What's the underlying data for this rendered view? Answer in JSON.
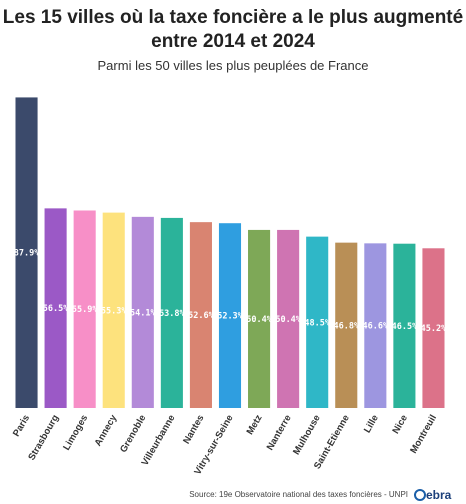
{
  "title_line1": "Les 15 villes où la taxe foncière a le plus augmenté",
  "title_line2": "entre 2014 et 2024",
  "subtitle": "Parmi les 50 villes les plus peuplées de France",
  "source": "Source: 19e Observatoire national des taxes foncières - UNPI",
  "logo_text": "ebra",
  "chart_data": {
    "type": "bar",
    "title": "Les 15 villes où la taxe foncière a le plus augmenté entre 2014 et 2024",
    "subtitle": "Parmi les 50 villes les plus peuplées de France",
    "categories": [
      "Paris",
      "Strasbourg",
      "Limoges",
      "Annecy",
      "Grenoble",
      "Villeurbanne",
      "Nantes",
      "Vitry-sur-Seine",
      "Metz",
      "Nanterre",
      "Mulhouse",
      "Saint-Etienne",
      "Lille",
      "Nice",
      "Montreuil"
    ],
    "values": [
      87.9,
      56.5,
      55.9,
      55.3,
      54.1,
      53.8,
      52.6,
      52.3,
      50.4,
      50.4,
      48.5,
      46.8,
      46.6,
      46.5,
      45.2
    ],
    "labels": [
      "87.9%",
      "56.5%",
      "55.9%",
      "55.3%",
      "54.1%",
      "53.8%",
      "52.6%",
      "52.3%",
      "50.4%",
      "50.4%",
      "48.5%",
      "46.8%",
      "46.6%",
      "46.5%",
      "45.2%"
    ],
    "colors": [
      "#3b4a6b",
      "#9b59c6",
      "#f78fc7",
      "#fde27d",
      "#b38ad8",
      "#2bb39a",
      "#d98471",
      "#2f9ee0",
      "#7ea857",
      "#cf74b2",
      "#2fb7c7",
      "#b98f56",
      "#9d96e0",
      "#2bb39a",
      "#dc7289"
    ],
    "ylim": [
      0,
      90
    ],
    "grid": false,
    "legend": false
  }
}
